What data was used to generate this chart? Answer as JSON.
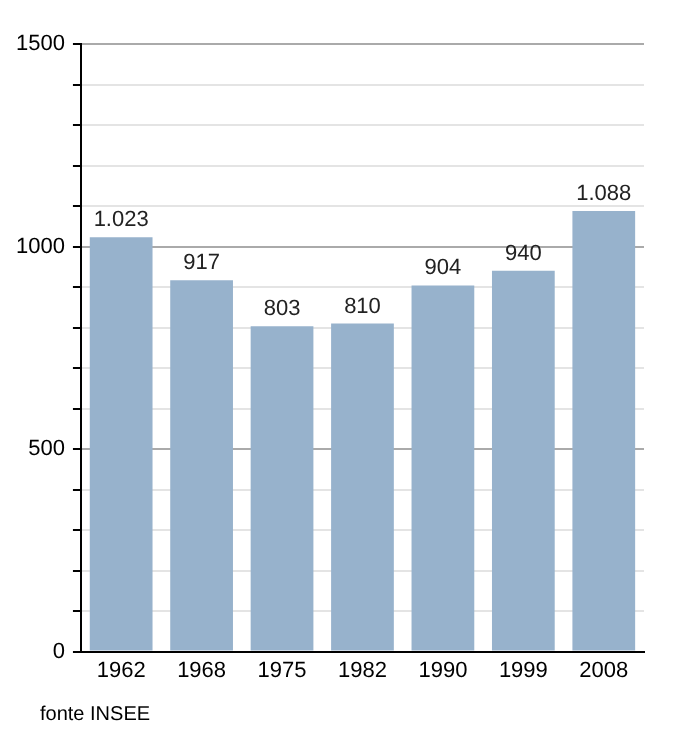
{
  "chart_data": {
    "type": "bar",
    "categories": [
      "1962",
      "1968",
      "1975",
      "1982",
      "1990",
      "1999",
      "2008"
    ],
    "values": [
      1023,
      917,
      803,
      810,
      904,
      940,
      1088
    ],
    "value_labels": [
      "1.023",
      "917",
      "803",
      "810",
      "904",
      "940",
      "1.088"
    ],
    "color": "#97b2cc",
    "ylim": [
      0,
      1500
    ],
    "yticks": [
      0,
      {
        "value": 100,
        "label": null
      },
      {
        "value": 200,
        "label": null
      },
      {
        "value": 300,
        "label": null
      },
      {
        "value": 400,
        "label": null
      },
      500,
      {
        "value": 600,
        "label": null
      },
      {
        "value": 700,
        "label": null
      },
      {
        "value": 800,
        "label": null
      },
      {
        "value": 900,
        "label": null
      },
      1000,
      {
        "value": 1100,
        "label": null
      },
      {
        "value": 1200,
        "label": null
      },
      {
        "value": 1300,
        "label": null
      },
      {
        "value": 1400,
        "label": null
      },
      1500
    ],
    "grid": "y",
    "legend": false,
    "annotations": [
      "fonte INSEE"
    ]
  }
}
